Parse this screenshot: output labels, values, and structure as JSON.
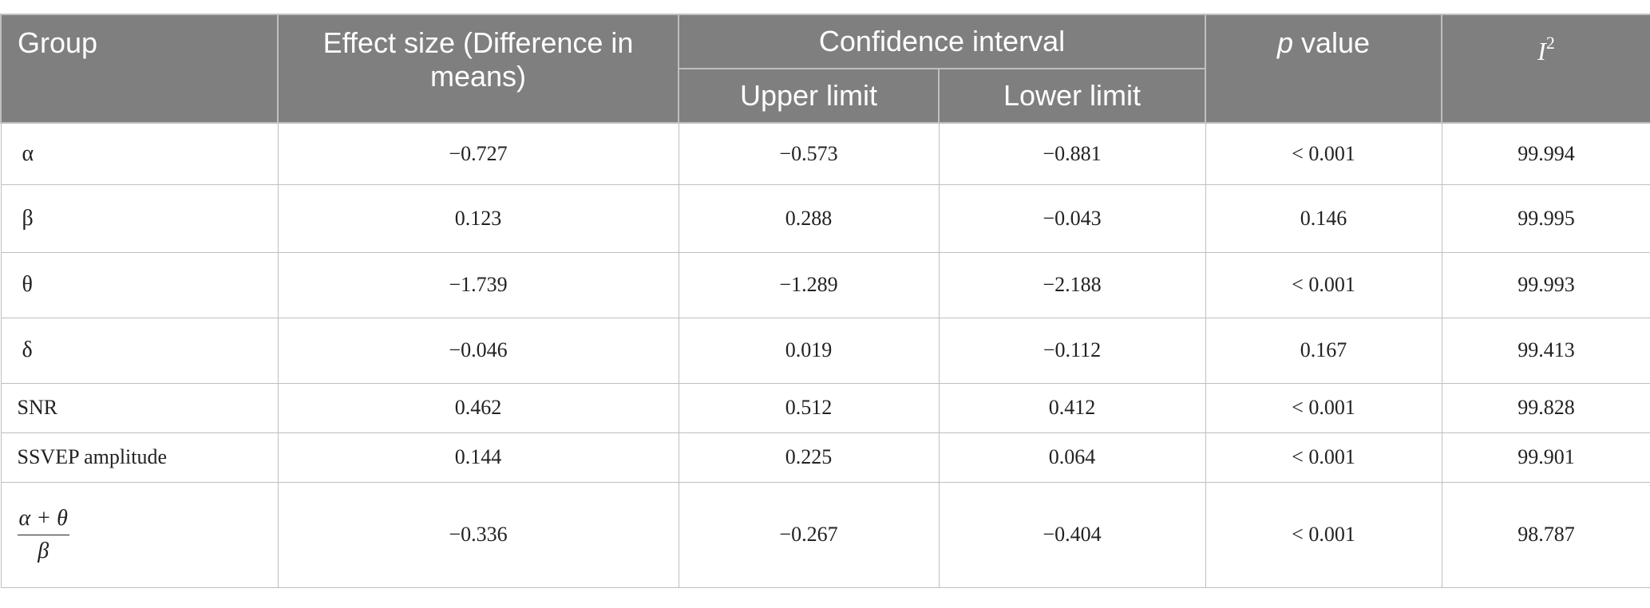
{
  "headers": {
    "group": "Group",
    "effect_size": "Effect size (Difference in means)",
    "confidence_interval": "Confidence interval",
    "upper_limit": "Upper limit",
    "lower_limit": "Lower limit",
    "p_value_italic": "p",
    "p_value_rest": " value",
    "i2_base": "I",
    "i2_sup": "2"
  },
  "rows": [
    {
      "group": "α",
      "effect": "−0.727",
      "upper": "−0.573",
      "lower": "−0.881",
      "p": "< 0.001",
      "i2": "99.994"
    },
    {
      "group": "β",
      "effect": "0.123",
      "upper": "0.288",
      "lower": "−0.043",
      "p": "0.146",
      "i2": "99.995"
    },
    {
      "group": "θ",
      "effect": "−1.739",
      "upper": "−1.289",
      "lower": "−2.188",
      "p": "< 0.001",
      "i2": "99.993"
    },
    {
      "group": "δ",
      "effect": "−0.046",
      "upper": "0.019",
      "lower": "−0.112",
      "p": "0.167",
      "i2": "99.413"
    },
    {
      "group": "SNR",
      "effect": "0.462",
      "upper": "0.512",
      "lower": "0.412",
      "p": "< 0.001",
      "i2": "99.828"
    },
    {
      "group": "SSVEP amplitude",
      "effect": "0.144",
      "upper": "0.225",
      "lower": "0.064",
      "p": "< 0.001",
      "i2": "99.901"
    },
    {
      "group_numerator": "α + θ",
      "group_denominator": "β",
      "effect": "−0.336",
      "upper": "−0.267",
      "lower": "−0.404",
      "p": "< 0.001",
      "i2": "98.787"
    }
  ]
}
